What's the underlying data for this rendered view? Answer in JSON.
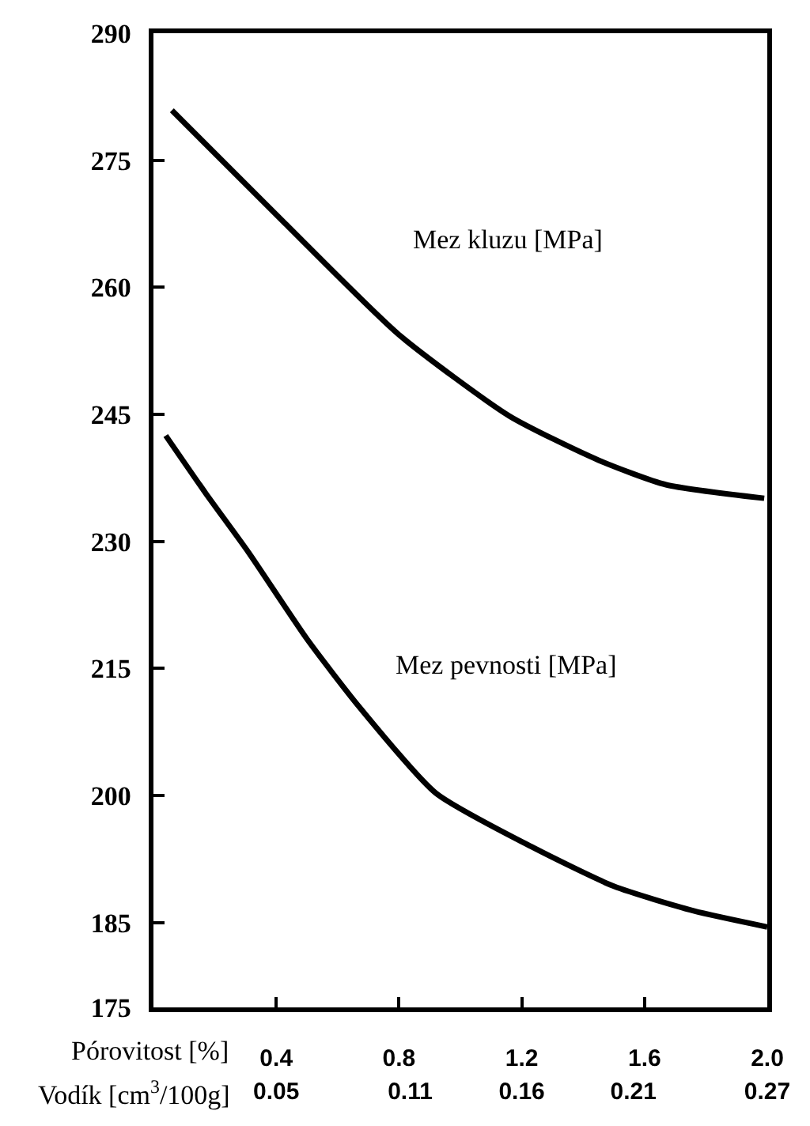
{
  "chart_data": {
    "type": "line",
    "xlabel": "Pórovitost [%]",
    "x2label": "Vodík [cm$^{3}$/100g]",
    "xlim": [
      0,
      2.0
    ],
    "xticks": [
      0.4,
      0.8,
      1.2,
      1.6,
      {
        "value": 2,
        "label": "2.0"
      }
    ],
    "x2lim": [
      -0.005,
      0.27
    ],
    "x2ticks": [
      0.05,
      0.11,
      0.16,
      0.21,
      0.27
    ],
    "ylim": [
      175,
      290
    ],
    "yticks": [
      175,
      185,
      200,
      215,
      230,
      245,
      260,
      275,
      290
    ],
    "grid": false,
    "legend": false,
    "marker": "none",
    "line_style": "solid",
    "series": [
      {
        "name": "Mez kluzu [MPa]",
        "color": "#000000",
        "x": [
          0.06,
          0.43,
          0.8,
          1.16,
          1.45,
          1.67,
          1.99
        ],
        "values": [
          280.9,
          267.5,
          254.4,
          244.8,
          239.6,
          236.7,
          235.1
        ]
      },
      {
        "name": "Mez pevnosti [MPa]",
        "color": "#000000",
        "x": [
          0.04,
          0.17,
          0.31,
          0.5,
          0.67,
          0.92,
          1.23,
          1.5,
          1.76,
          2.0
        ],
        "values": [
          242.5,
          235.7,
          228.7,
          218.5,
          210.5,
          200.3,
          194.0,
          189.3,
          186.4,
          184.5
        ]
      }
    ]
  }
}
